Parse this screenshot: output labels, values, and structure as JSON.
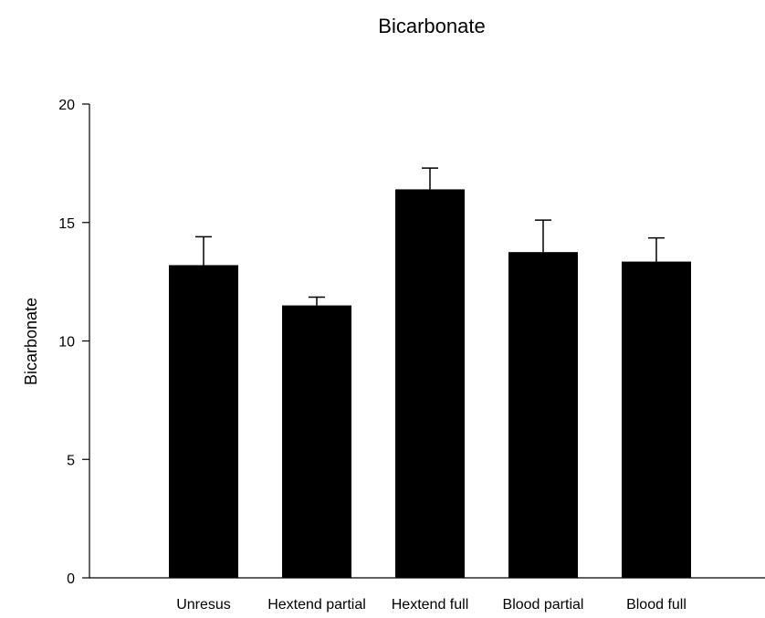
{
  "chart_data": {
    "type": "bar",
    "title": "Bicarbonate",
    "xlabel": "",
    "ylabel": "Bicarbonate",
    "categories": [
      "Unresus",
      "Hextend partial",
      "Hextend full",
      "Blood partial",
      "Blood full"
    ],
    "values": [
      13.2,
      11.5,
      16.4,
      13.75,
      13.35
    ],
    "error_upper": [
      1.2,
      0.35,
      0.9,
      1.35,
      1.0
    ],
    "ylim": [
      0,
      20
    ],
    "yticks": [
      "0",
      "5",
      "10",
      "15",
      "20"
    ],
    "grid": false,
    "bar_color": "#000000"
  }
}
